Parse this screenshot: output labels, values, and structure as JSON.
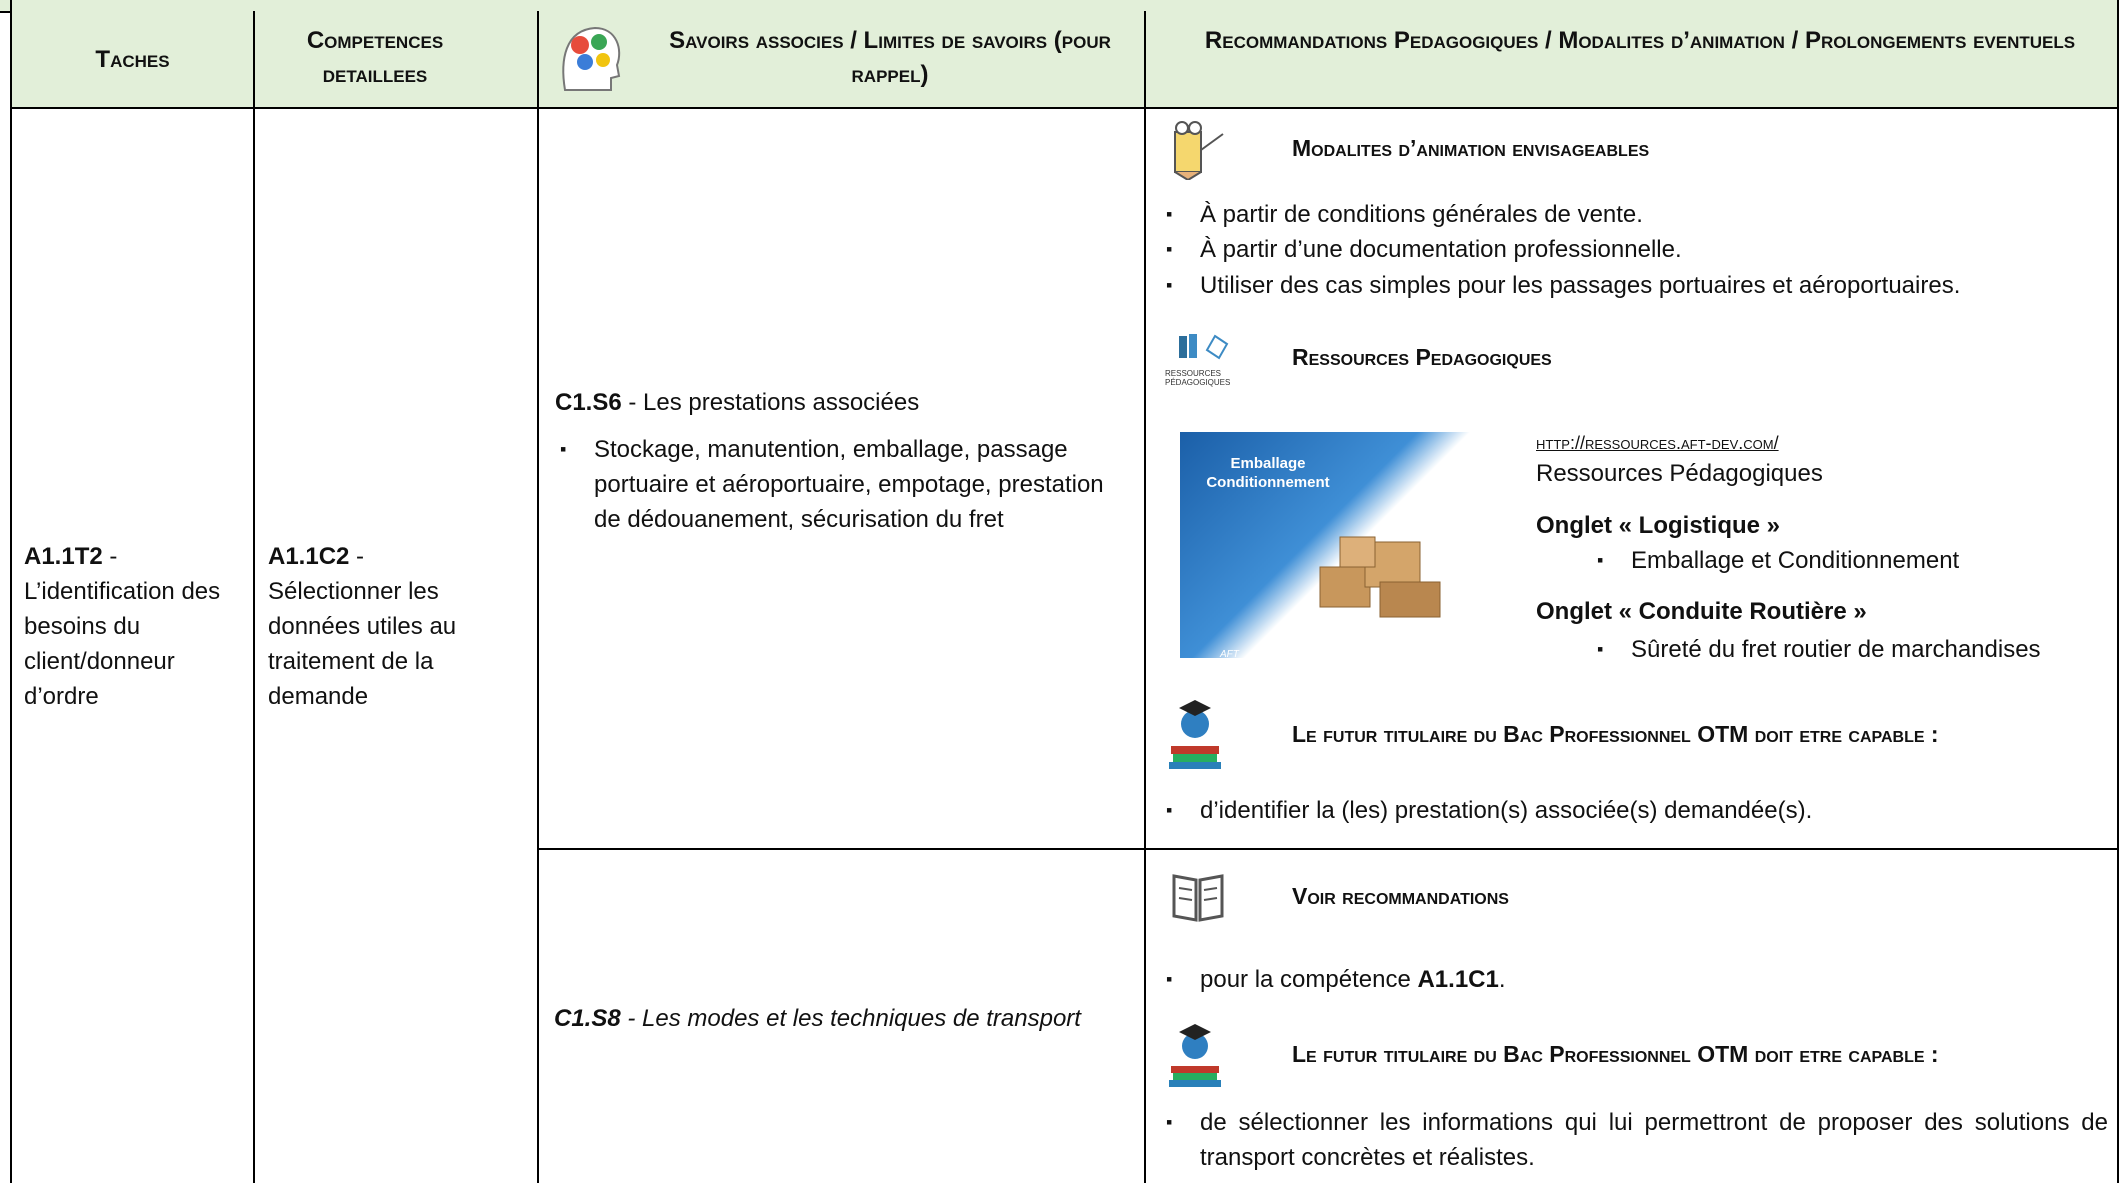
{
  "header": {
    "tasks": "Taches",
    "competences": "Competences detaillees",
    "savoirs": "Savoirs associes / Limites de savoirs (pour rappel)",
    "recommandations": "Recommandations Pedagogiques / Modalites d’animation / Prolongements eventuels"
  },
  "row": {
    "task_code": "A1.1T2",
    "task_text": "- L’identification des besoins du client/donneur d’ordre",
    "competence_code": "A1.1C2",
    "competence_text": "- Sélectionner les données utiles au traitement de la demande"
  },
  "sections": [
    {
      "savoir_code": "C1.S6",
      "savoir_text": "- Les prestations associées",
      "savoir_bullets": [
        "Stockage, manutention, emballage, passage portuaire et aéroportuaire, empotage, prestation de dédouanement, sécurisation du fret"
      ],
      "modalites": {
        "heading": "Modalites d’animation envisageables",
        "bullets": [
          "À partir de conditions générales de vente.",
          "À partir d’une documentation professionnelle.",
          "Utiliser des cas simples pour les passages portuaires et aéroportuaires."
        ]
      },
      "ressources": {
        "heading": "Ressources Pedagogiques",
        "icon_label": "Ressources Pédagogiques",
        "image_title": "Emballage Conditionnement",
        "image_logo": "AFT",
        "url": "http://ressources.aft-dev.com/",
        "site": "Ressources Pédagogiques",
        "tabs": [
          {
            "name": "Onglet « Logistique »",
            "items": [
              "Emballage et Conditionnement"
            ]
          },
          {
            "name": "Onglet « Conduite Routière »",
            "items": [
              "Sûreté du fret routier de marchandises"
            ]
          }
        ]
      },
      "capable": {
        "heading": "Le futur titulaire du Bac Professionnel OTM doit etre capable :",
        "bullets": [
          "d’identifier la (les) prestation(s) associée(s) demandée(s)."
        ]
      }
    },
    {
      "savoir_code": "C1.S8",
      "savoir_text": "- Les modes et les techniques de transport",
      "voir": {
        "heading": "Voir recommandations",
        "bullet_text": "pour la compétence ",
        "bullet_code": "A1.1C1",
        "bullet_end": "."
      },
      "capable": {
        "heading": "Le futur titulaire du Bac Professionnel OTM doit etre capable :",
        "bullets": [
          "de sélectionner les informations qui lui permettront de proposer des solutions de transport concrètes et réalistes."
        ]
      }
    }
  ]
}
